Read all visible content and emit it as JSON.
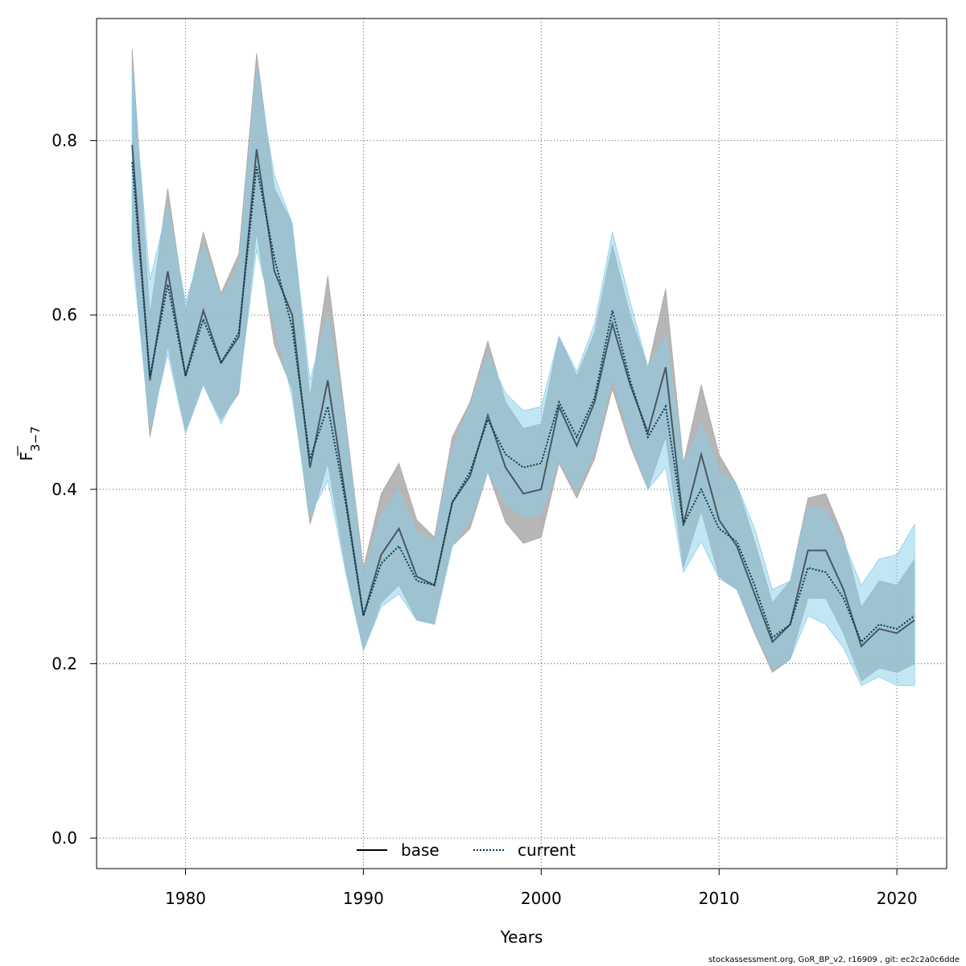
{
  "chart_data": {
    "type": "line",
    "xlabel": "Years",
    "ylabel": "F",
    "ylabel_subscript": "3−7",
    "xlim": [
      1975,
      2022.8
    ],
    "ylim": [
      -0.035,
      0.94
    ],
    "xticks": [
      1980,
      1990,
      2000,
      2010,
      2020
    ],
    "yticks": [
      0.0,
      0.2,
      0.4,
      0.6,
      0.8
    ],
    "ytick_labels": [
      "0.0",
      "0.2",
      "0.4",
      "0.6",
      "0.8"
    ],
    "grid": true,
    "legend_position": "bottom-center",
    "x": [
      1977,
      1978,
      1979,
      1980,
      1981,
      1982,
      1983,
      1984,
      1985,
      1986,
      1987,
      1988,
      1989,
      1990,
      1991,
      1992,
      1993,
      1994,
      1995,
      1996,
      1997,
      1998,
      1999,
      2000,
      2001,
      2002,
      2003,
      2004,
      2005,
      2006,
      2007,
      2008,
      2009,
      2010,
      2011,
      2012,
      2013,
      2014,
      2015,
      2016,
      2017,
      2018,
      2019,
      2020,
      2021
    ],
    "series": [
      {
        "name": "base",
        "style": "solid",
        "color": "#000000",
        "band_color": "#a9a9a9",
        "values": [
          0.795,
          0.525,
          0.65,
          0.53,
          0.605,
          0.545,
          0.575,
          0.79,
          0.65,
          0.6,
          0.425,
          0.525,
          0.39,
          0.255,
          0.325,
          0.355,
          0.3,
          0.29,
          0.385,
          0.415,
          0.485,
          0.425,
          0.395,
          0.4,
          0.495,
          0.45,
          0.5,
          0.59,
          0.52,
          0.465,
          0.54,
          0.36,
          0.44,
          0.365,
          0.335,
          0.28,
          0.225,
          0.245,
          0.33,
          0.33,
          0.285,
          0.22,
          0.24,
          0.235,
          0.25
        ],
        "lower": [
          0.69,
          0.46,
          0.565,
          0.465,
          0.52,
          0.48,
          0.51,
          0.695,
          0.565,
          0.515,
          0.36,
          0.43,
          0.31,
          0.215,
          0.27,
          0.29,
          0.25,
          0.245,
          0.335,
          0.355,
          0.42,
          0.362,
          0.338,
          0.345,
          0.43,
          0.39,
          0.435,
          0.515,
          0.45,
          0.4,
          0.46,
          0.31,
          0.375,
          0.3,
          0.285,
          0.235,
          0.19,
          0.205,
          0.275,
          0.275,
          0.235,
          0.18,
          0.195,
          0.19,
          0.2
        ],
        "upper": [
          0.905,
          0.6,
          0.745,
          0.605,
          0.695,
          0.625,
          0.67,
          0.9,
          0.745,
          0.705,
          0.505,
          0.645,
          0.48,
          0.31,
          0.395,
          0.43,
          0.365,
          0.345,
          0.46,
          0.5,
          0.57,
          0.5,
          0.47,
          0.475,
          0.575,
          0.53,
          0.58,
          0.68,
          0.6,
          0.54,
          0.63,
          0.43,
          0.52,
          0.44,
          0.405,
          0.34,
          0.27,
          0.295,
          0.39,
          0.395,
          0.345,
          0.265,
          0.295,
          0.29,
          0.32
        ]
      },
      {
        "name": "current",
        "style": "dotted",
        "color": "#003b5c",
        "band_color": "#87ceeb",
        "values": [
          0.775,
          0.53,
          0.635,
          0.53,
          0.595,
          0.545,
          0.58,
          0.77,
          0.665,
          0.585,
          0.435,
          0.495,
          0.385,
          0.255,
          0.315,
          0.335,
          0.295,
          0.29,
          0.385,
          0.42,
          0.48,
          0.44,
          0.425,
          0.43,
          0.5,
          0.46,
          0.505,
          0.605,
          0.525,
          0.46,
          0.495,
          0.36,
          0.4,
          0.355,
          0.34,
          0.29,
          0.23,
          0.245,
          0.31,
          0.305,
          0.275,
          0.225,
          0.245,
          0.24,
          0.255
        ],
        "lower": [
          0.67,
          0.47,
          0.555,
          0.465,
          0.52,
          0.475,
          0.515,
          0.675,
          0.59,
          0.505,
          0.37,
          0.41,
          0.305,
          0.215,
          0.265,
          0.28,
          0.25,
          0.245,
          0.335,
          0.365,
          0.42,
          0.385,
          0.368,
          0.372,
          0.435,
          0.4,
          0.445,
          0.53,
          0.46,
          0.4,
          0.425,
          0.305,
          0.34,
          0.298,
          0.285,
          0.24,
          0.195,
          0.205,
          0.255,
          0.245,
          0.218,
          0.175,
          0.185,
          0.175,
          0.175
        ],
        "upper": [
          0.88,
          0.64,
          0.725,
          0.615,
          0.68,
          0.62,
          0.655,
          0.88,
          0.76,
          0.705,
          0.525,
          0.6,
          0.47,
          0.3,
          0.37,
          0.4,
          0.35,
          0.34,
          0.445,
          0.495,
          0.555,
          0.51,
          0.49,
          0.495,
          0.575,
          0.535,
          0.59,
          0.695,
          0.615,
          0.54,
          0.575,
          0.425,
          0.475,
          0.42,
          0.405,
          0.355,
          0.285,
          0.295,
          0.38,
          0.375,
          0.34,
          0.29,
          0.32,
          0.325,
          0.36
        ]
      }
    ]
  },
  "footer": "stockassessment.org, GoR_BP_v2, r16909 , git: ec2c2a0c6dde"
}
